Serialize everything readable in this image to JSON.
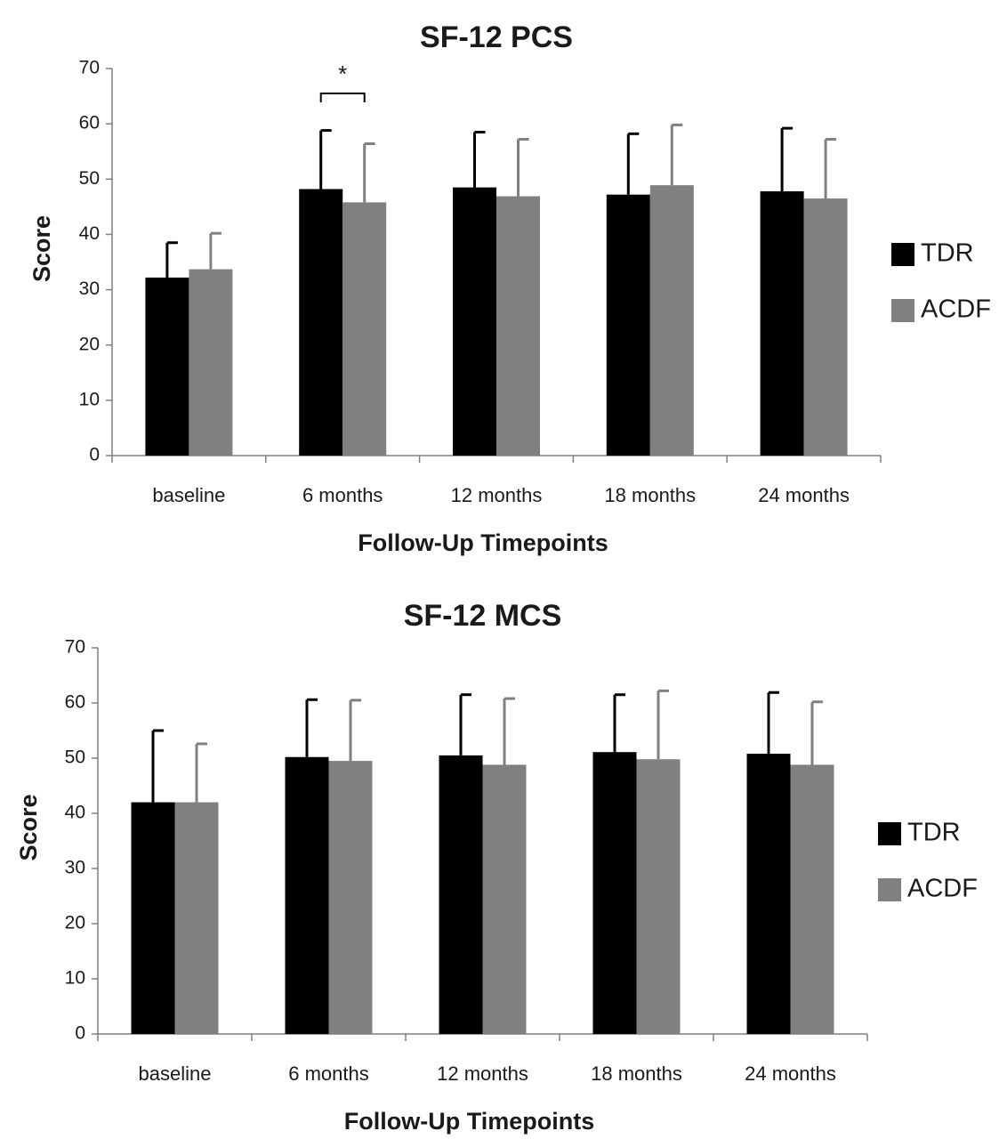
{
  "chart_data": [
    {
      "type": "bar",
      "title": "SF-12 PCS",
      "xlabel": "Follow-Up Timepoints",
      "ylabel": "Score",
      "ylim": [
        0,
        70
      ],
      "yticks": [
        0,
        10,
        20,
        30,
        40,
        50,
        60,
        70
      ],
      "grid": false,
      "legend_position": "right",
      "categories": [
        "baseline",
        "6 months",
        "12 months",
        "18 months",
        "24 months"
      ],
      "series": [
        {
          "name": "TDR",
          "color": "#000000",
          "values": [
            32.2,
            48.2,
            48.5,
            47.2,
            47.8
          ],
          "error": [
            6.3,
            10.6,
            10.0,
            11.0,
            11.4
          ]
        },
        {
          "name": "ACDF",
          "color": "#808080",
          "values": [
            33.7,
            45.8,
            46.9,
            48.9,
            46.5
          ],
          "error": [
            6.5,
            10.6,
            10.3,
            10.9,
            10.7
          ]
        }
      ],
      "annotations": [
        {
          "category_index": 1,
          "text": "*"
        }
      ]
    },
    {
      "type": "bar",
      "title": "SF-12 MCS",
      "xlabel": "Follow-Up Timepoints",
      "ylabel": "Score",
      "ylim": [
        0,
        70
      ],
      "yticks": [
        0,
        10,
        20,
        30,
        40,
        50,
        60,
        70
      ],
      "grid": false,
      "legend_position": "right",
      "categories": [
        "baseline",
        "6 months",
        "12 months",
        "18 months",
        "24 months"
      ],
      "series": [
        {
          "name": "TDR",
          "color": "#000000",
          "values": [
            42.0,
            50.2,
            50.5,
            51.1,
            50.8
          ],
          "error": [
            13.0,
            10.4,
            11.0,
            10.4,
            11.1
          ]
        },
        {
          "name": "ACDF",
          "color": "#808080",
          "values": [
            42.0,
            49.5,
            48.8,
            49.8,
            48.8
          ],
          "error": [
            10.6,
            11.0,
            12.0,
            12.4,
            11.4
          ]
        }
      ],
      "annotations": []
    }
  ]
}
